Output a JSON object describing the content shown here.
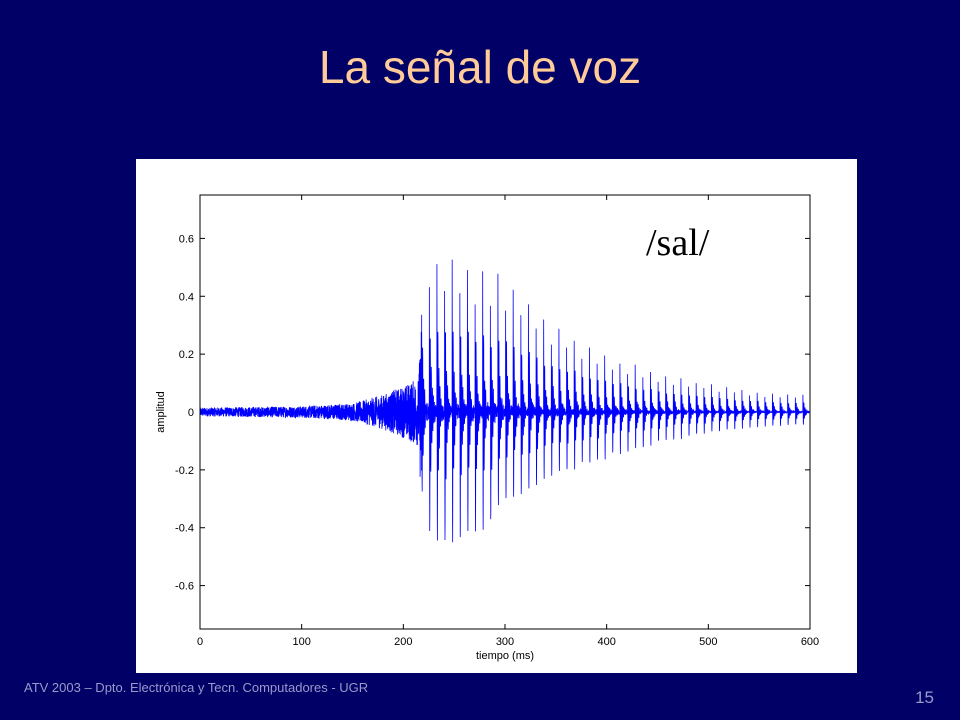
{
  "slide": {
    "title": "La señal de voz",
    "footer": "ATV 2003 – Dpto. Electrónica y Tecn. Computadores - UGR",
    "page_number": "15"
  },
  "colors": {
    "background": "#000066",
    "title": "#ffcc99",
    "footer": "#9999cc",
    "signal": "#0000ff"
  },
  "chart_data": {
    "type": "line",
    "title": "",
    "xlabel": "tiempo (ms)",
    "ylabel": "amplitud",
    "annotation": "/sal/",
    "xlim": [
      0,
      600
    ],
    "ylim": [
      -0.75,
      0.75
    ],
    "xticks": [
      0,
      100,
      200,
      300,
      400,
      500,
      600
    ],
    "xtick_labels": [
      "0",
      "100",
      "200",
      "300",
      "400",
      "500",
      "600"
    ],
    "yticks": [
      0.6,
      0.4,
      0.2,
      0,
      -0.2,
      -0.4,
      -0.6
    ],
    "ytick_labels": [
      "0.6",
      "0.4",
      "0.2",
      "0",
      "-0.2",
      "-0.4",
      "-0.6"
    ],
    "grid": false,
    "series": [
      {
        "envelope_x": [
          0,
          100,
          150,
          180,
          200,
          215,
          220,
          225,
          240,
          260,
          280,
          300,
          320,
          350,
          400,
          450,
          500,
          550,
          600
        ],
        "envelope_max": [
          0.015,
          0.02,
          0.03,
          0.06,
          0.09,
          0.12,
          0.5,
          0.55,
          0.57,
          0.52,
          0.5,
          0.48,
          0.4,
          0.3,
          0.2,
          0.14,
          0.1,
          0.07,
          0.06
        ],
        "envelope_min": [
          -0.015,
          -0.02,
          -0.03,
          -0.06,
          -0.09,
          -0.12,
          -0.5,
          -0.57,
          -0.62,
          -0.6,
          -0.55,
          -0.45,
          -0.4,
          -0.3,
          -0.22,
          -0.15,
          -0.1,
          -0.07,
          -0.06
        ],
        "pitch_period_ms": 7.5
      }
    ]
  }
}
